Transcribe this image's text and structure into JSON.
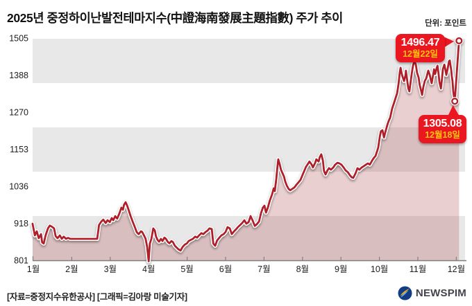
{
  "header": {
    "title": "2025년 중정하이난발전테마지수(中證海南發展主題指數) 주가 추이",
    "unit_label": "단위: 포인트"
  },
  "footer": {
    "credit": "[자료=중정지수유한공사] [그래픽=김아랑 미술기자]",
    "logo_text": "NEWSPIM"
  },
  "chart_data": {
    "type": "line",
    "title": "2025년 중정하이난발전테마지수 주가 추이",
    "ylabel": "포인트",
    "ylim": [
      801,
      1505
    ],
    "y_ticks": [
      1505,
      1388,
      1270,
      1153,
      1036,
      918,
      801
    ],
    "x_tick_labels": [
      "1월",
      "2월",
      "3월",
      "4월",
      "5월",
      "6월",
      "7월",
      "8월",
      "9월",
      "10월",
      "11월",
      "12월"
    ],
    "x_unit": "month of 2025 (1 = 1월 tick, fractional = position within month)",
    "grid": "5 alternating horizontal bands, gray/white",
    "legend_position": "none",
    "band_color": "#e8e8e8",
    "line_color": "#b01f29",
    "fill_color": "rgba(167,63,63,0.25)",
    "callout_color": "#ea1620",
    "annotations": [
      {
        "x": 12.07,
        "value": 1496.47,
        "label_value": "1496.47",
        "label_date": "12월22일"
      },
      {
        "x": 11.96,
        "value": 1305.08,
        "label_value": "1305.08",
        "label_date": "12월18일"
      }
    ],
    "series": [
      {
        "name": "중정하이난발전테마지수(中證海南發展主題指數)",
        "points": [
          [
            0.98,
            917
          ],
          [
            1.04,
            880
          ],
          [
            1.09,
            893
          ],
          [
            1.14,
            871
          ],
          [
            1.2,
            884
          ],
          [
            1.23,
            858
          ],
          [
            1.27,
            854
          ],
          [
            1.32,
            880
          ],
          [
            1.38,
            902
          ],
          [
            1.43,
            911
          ],
          [
            1.49,
            907
          ],
          [
            1.54,
            902
          ],
          [
            1.58,
            878
          ],
          [
            1.63,
            871
          ],
          [
            1.69,
            880
          ],
          [
            1.74,
            869
          ],
          [
            1.79,
            876
          ],
          [
            1.85,
            869
          ],
          [
            1.9,
            872
          ],
          [
            1.96,
            869
          ],
          [
            2.01,
            869
          ],
          [
            2.08,
            869
          ],
          [
            2.16,
            869
          ],
          [
            2.23,
            869
          ],
          [
            2.3,
            869
          ],
          [
            2.37,
            869
          ],
          [
            2.44,
            869
          ],
          [
            2.52,
            869
          ],
          [
            2.59,
            869
          ],
          [
            2.66,
            869
          ],
          [
            2.71,
            913
          ],
          [
            2.77,
            924
          ],
          [
            2.82,
            930
          ],
          [
            2.88,
            919
          ],
          [
            2.93,
            928
          ],
          [
            2.99,
            922
          ],
          [
            3.04,
            935
          ],
          [
            3.08,
            928
          ],
          [
            3.13,
            941
          ],
          [
            3.18,
            933
          ],
          [
            3.24,
            950
          ],
          [
            3.29,
            968
          ],
          [
            3.33,
            961
          ],
          [
            3.36,
            977
          ],
          [
            3.4,
            985
          ],
          [
            3.44,
            974
          ],
          [
            3.47,
            964
          ],
          [
            3.53,
            941
          ],
          [
            3.58,
            925
          ],
          [
            3.64,
            906
          ],
          [
            3.69,
            890
          ],
          [
            3.74,
            884
          ],
          [
            3.8,
            893
          ],
          [
            3.83,
            891
          ],
          [
            3.89,
            877
          ],
          [
            3.92,
            869
          ],
          [
            3.96,
            843
          ],
          [
            4.0,
            798
          ],
          [
            4.03,
            854
          ],
          [
            4.07,
            869
          ],
          [
            4.12,
            902
          ],
          [
            4.16,
            895
          ],
          [
            4.19,
            877
          ],
          [
            4.23,
            866
          ],
          [
            4.27,
            860
          ],
          [
            4.32,
            869
          ],
          [
            4.36,
            862
          ],
          [
            4.41,
            873
          ],
          [
            4.45,
            869
          ],
          [
            4.5,
            859
          ],
          [
            4.54,
            855
          ],
          [
            4.59,
            862
          ],
          [
            4.63,
            859
          ],
          [
            4.68,
            847
          ],
          [
            4.74,
            840
          ],
          [
            4.77,
            836
          ],
          [
            4.83,
            832
          ],
          [
            4.88,
            843
          ],
          [
            4.94,
            851
          ],
          [
            4.99,
            854
          ],
          [
            5.04,
            862
          ],
          [
            5.1,
            866
          ],
          [
            5.15,
            869
          ],
          [
            5.21,
            876
          ],
          [
            5.26,
            873
          ],
          [
            5.31,
            880
          ],
          [
            5.37,
            887
          ],
          [
            5.42,
            884
          ],
          [
            5.48,
            891
          ],
          [
            5.53,
            895
          ],
          [
            5.58,
            902
          ],
          [
            5.64,
            900
          ],
          [
            5.68,
            854
          ],
          [
            5.73,
            847
          ],
          [
            5.78,
            864
          ],
          [
            5.84,
            873
          ],
          [
            5.89,
            880
          ],
          [
            5.95,
            884
          ],
          [
            6.0,
            891
          ],
          [
            6.05,
            906
          ],
          [
            6.11,
            902
          ],
          [
            6.16,
            884
          ],
          [
            6.22,
            893
          ],
          [
            6.27,
            899
          ],
          [
            6.32,
            906
          ],
          [
            6.38,
            913
          ],
          [
            6.43,
            919
          ],
          [
            6.49,
            928
          ],
          [
            6.54,
            917
          ],
          [
            6.6,
            922
          ],
          [
            6.65,
            941
          ],
          [
            6.7,
            928
          ],
          [
            6.76,
            910
          ],
          [
            6.81,
            915
          ],
          [
            6.87,
            924
          ],
          [
            6.92,
            950
          ],
          [
            6.97,
            968
          ],
          [
            7.01,
            974
          ],
          [
            7.05,
            952
          ],
          [
            7.1,
            968
          ],
          [
            7.15,
            990
          ],
          [
            7.21,
            1010
          ],
          [
            7.25,
            1029
          ],
          [
            7.28,
            1020
          ],
          [
            7.32,
            1060
          ],
          [
            7.35,
            1100
          ],
          [
            7.37,
            1121
          ],
          [
            7.41,
            1104
          ],
          [
            7.44,
            1088
          ],
          [
            7.48,
            1077
          ],
          [
            7.52,
            1066
          ],
          [
            7.55,
            1051
          ],
          [
            7.59,
            1038
          ],
          [
            7.64,
            1027
          ],
          [
            7.68,
            1023
          ],
          [
            7.73,
            1027
          ],
          [
            7.79,
            1032
          ],
          [
            7.84,
            1040
          ],
          [
            7.89,
            1047
          ],
          [
            7.95,
            1056
          ],
          [
            8.0,
            1071
          ],
          [
            8.06,
            1088
          ],
          [
            8.09,
            1097
          ],
          [
            8.15,
            1108
          ],
          [
            8.18,
            1114
          ],
          [
            8.24,
            1104
          ],
          [
            8.27,
            1095
          ],
          [
            8.33,
            1110
          ],
          [
            8.36,
            1121
          ],
          [
            8.42,
            1114
          ],
          [
            8.45,
            1128
          ],
          [
            8.49,
            1137
          ],
          [
            8.53,
            1117
          ],
          [
            8.56,
            1084
          ],
          [
            8.6,
            1073
          ],
          [
            8.65,
            1086
          ],
          [
            8.69,
            1093
          ],
          [
            8.74,
            1088
          ],
          [
            8.8,
            1095
          ],
          [
            8.85,
            1104
          ],
          [
            8.91,
            1110
          ],
          [
            8.96,
            1108
          ],
          [
            9.01,
            1104
          ],
          [
            9.07,
            1095
          ],
          [
            9.12,
            1086
          ],
          [
            9.18,
            1080
          ],
          [
            9.23,
            1071
          ],
          [
            9.28,
            1064
          ],
          [
            9.32,
            1062
          ],
          [
            9.38,
            1077
          ],
          [
            9.43,
            1093
          ],
          [
            9.48,
            1088
          ],
          [
            9.54,
            1095
          ],
          [
            9.59,
            1099
          ],
          [
            9.65,
            1104
          ],
          [
            9.7,
            1108
          ],
          [
            9.75,
            1104
          ],
          [
            9.81,
            1117
          ],
          [
            9.86,
            1126
          ],
          [
            9.9,
            1132
          ],
          [
            9.93,
            1143
          ],
          [
            9.97,
            1158
          ],
          [
            10.01,
            1193
          ],
          [
            10.04,
            1210
          ],
          [
            10.08,
            1213
          ],
          [
            10.12,
            1190
          ],
          [
            10.15,
            1205
          ],
          [
            10.21,
            1231
          ],
          [
            10.24,
            1242
          ],
          [
            10.28,
            1253
          ],
          [
            10.33,
            1281
          ],
          [
            10.39,
            1303
          ],
          [
            10.42,
            1315
          ],
          [
            10.46,
            1330
          ],
          [
            10.5,
            1362
          ],
          [
            10.53,
            1397
          ],
          [
            10.55,
            1411
          ],
          [
            10.58,
            1393
          ],
          [
            10.6,
            1384
          ],
          [
            10.64,
            1369
          ],
          [
            10.68,
            1388
          ],
          [
            10.69,
            1402
          ],
          [
            10.73,
            1365
          ],
          [
            10.75,
            1347
          ],
          [
            10.78,
            1336
          ],
          [
            10.82,
            1373
          ],
          [
            10.84,
            1391
          ],
          [
            10.87,
            1415
          ],
          [
            10.91,
            1435
          ],
          [
            10.95,
            1420
          ],
          [
            10.98,
            1395
          ],
          [
            11.02,
            1380
          ],
          [
            11.05,
            1355
          ],
          [
            11.09,
            1336
          ],
          [
            11.11,
            1325
          ],
          [
            11.14,
            1349
          ],
          [
            11.18,
            1369
          ],
          [
            11.22,
            1378
          ],
          [
            11.25,
            1393
          ],
          [
            11.27,
            1402
          ],
          [
            11.31,
            1388
          ],
          [
            11.34,
            1371
          ],
          [
            11.36,
            1362
          ],
          [
            11.4,
            1391
          ],
          [
            11.42,
            1406
          ],
          [
            11.45,
            1391
          ],
          [
            11.49,
            1410
          ],
          [
            11.51,
            1417
          ],
          [
            11.54,
            1391
          ],
          [
            11.56,
            1367
          ],
          [
            11.6,
            1345
          ],
          [
            11.63,
            1378
          ],
          [
            11.65,
            1406
          ],
          [
            11.69,
            1421
          ],
          [
            11.72,
            1402
          ],
          [
            11.74,
            1388
          ],
          [
            11.78,
            1411
          ],
          [
            11.81,
            1432
          ],
          [
            11.83,
            1434
          ],
          [
            11.87,
            1402
          ],
          [
            11.88,
            1386
          ],
          [
            11.9,
            1369
          ],
          [
            11.92,
            1336
          ],
          [
            11.94,
            1318
          ],
          [
            11.96,
            1305.08
          ],
          [
            12.07,
            1496.47
          ]
        ]
      }
    ]
  }
}
